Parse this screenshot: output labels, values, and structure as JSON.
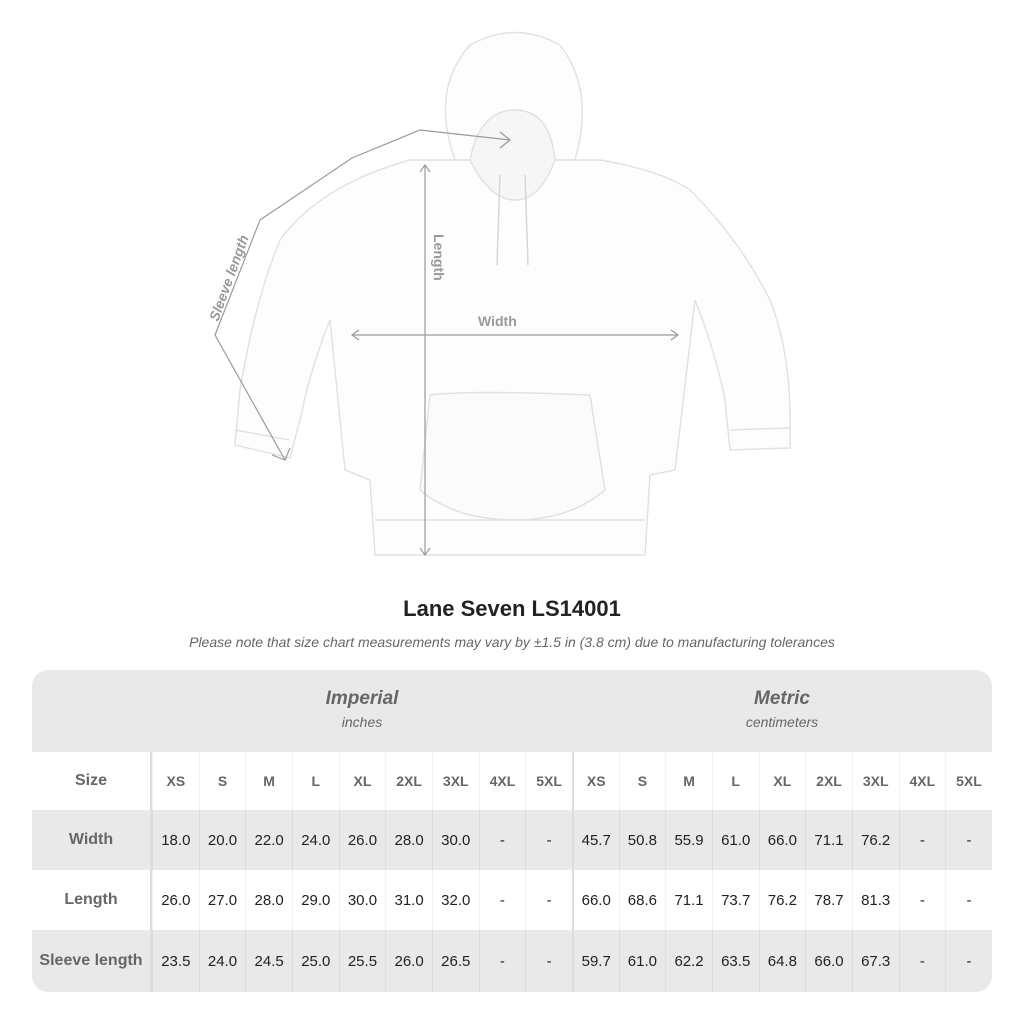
{
  "diagram": {
    "labels": {
      "sleeve": "Sleeve length",
      "length": "Length",
      "width": "Width"
    },
    "garment_color": "#ffffff"
  },
  "title": "Lane Seven LS14001",
  "note": "Please note that size chart measurements may vary by ±1.5 in (3.8 cm) due to manufacturing tolerances",
  "table": {
    "imperial": {
      "name": "Imperial",
      "unit": "inches"
    },
    "metric": {
      "name": "Metric",
      "unit": "centimeters"
    },
    "size_label": "Size",
    "sizes": [
      "XS",
      "S",
      "M",
      "L",
      "XL",
      "2XL",
      "3XL",
      "4XL",
      "5XL"
    ],
    "rows": [
      {
        "label": "Width",
        "imperial": [
          "18.0",
          "20.0",
          "22.0",
          "24.0",
          "26.0",
          "28.0",
          "30.0",
          "-",
          "-"
        ],
        "metric": [
          "45.7",
          "50.8",
          "55.9",
          "61.0",
          "66.0",
          "71.1",
          "76.2",
          "-",
          "-"
        ]
      },
      {
        "label": "Length",
        "imperial": [
          "26.0",
          "27.0",
          "28.0",
          "29.0",
          "30.0",
          "31.0",
          "32.0",
          "-",
          "-"
        ],
        "metric": [
          "66.0",
          "68.6",
          "71.1",
          "73.7",
          "76.2",
          "78.7",
          "81.3",
          "-",
          "-"
        ]
      },
      {
        "label": "Sleeve length",
        "imperial": [
          "23.5",
          "24.0",
          "24.5",
          "25.0",
          "25.5",
          "26.0",
          "26.5",
          "-",
          "-"
        ],
        "metric": [
          "59.7",
          "61.0",
          "62.2",
          "63.5",
          "64.8",
          "66.0",
          "67.3",
          "-",
          "-"
        ]
      }
    ]
  }
}
